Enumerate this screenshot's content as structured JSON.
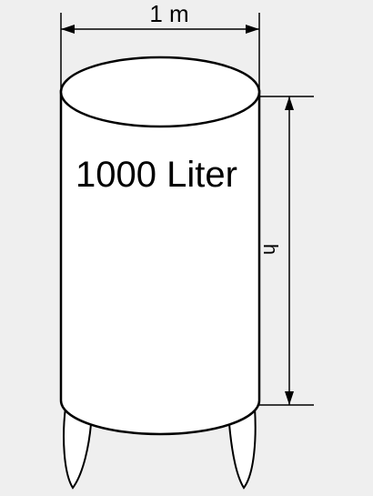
{
  "diagram": {
    "diameter_label": "1 m",
    "volume_label": "1000 Liter",
    "height_label": "h",
    "colors": {
      "background": "#efefef",
      "tank_fill": "#ffffff",
      "stroke": "#000000"
    }
  }
}
